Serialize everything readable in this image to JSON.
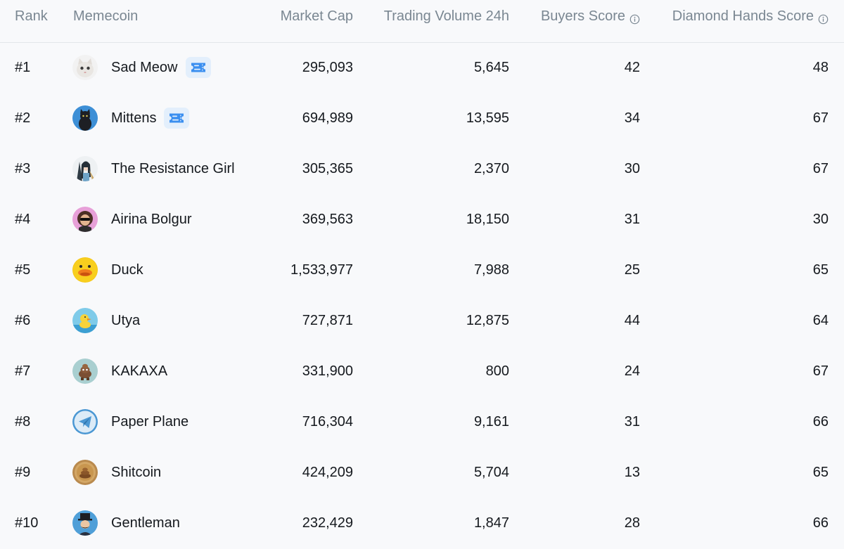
{
  "header": {
    "rank": "Rank",
    "memecoin": "Memecoin",
    "market_cap": "Market Cap",
    "trading_volume": "Trading Volume 24h",
    "buyers_score": "Buyers Score",
    "diamond_hands_score": "Diamond Hands Score",
    "info_icon": "info-circle-icon"
  },
  "badge_icon": "ticket-icon",
  "colors": {
    "header_text": "#7a8792",
    "body_text": "#15191e",
    "badge_bg": "#e3effc",
    "badge_icon": "#3b8ff0",
    "divider": "#e3e6ea",
    "background": "#f8f9fb"
  },
  "rows": [
    {
      "rank": "#1",
      "name": "Sad Meow",
      "avatar": "sad-cat-avatar",
      "badge": true,
      "market_cap": "295,093",
      "volume": "5,645",
      "buyers": "42",
      "diamond": "48"
    },
    {
      "rank": "#2",
      "name": "Mittens",
      "avatar": "black-cat-avatar",
      "badge": true,
      "market_cap": "694,989",
      "volume": "13,595",
      "buyers": "34",
      "diamond": "67"
    },
    {
      "rank": "#3",
      "name": "The Resistance Girl",
      "avatar": "resistance-girl-avatar",
      "badge": false,
      "market_cap": "305,365",
      "volume": "2,370",
      "buyers": "30",
      "diamond": "67"
    },
    {
      "rank": "#4",
      "name": "Airina Bolgur",
      "avatar": "airina-avatar",
      "badge": false,
      "market_cap": "369,563",
      "volume": "18,150",
      "buyers": "31",
      "diamond": "30"
    },
    {
      "rank": "#5",
      "name": "Duck",
      "avatar": "duck-avatar",
      "badge": false,
      "market_cap": "1,533,977",
      "volume": "7,988",
      "buyers": "25",
      "diamond": "65"
    },
    {
      "rank": "#6",
      "name": "Utya",
      "avatar": "utya-duck-avatar",
      "badge": false,
      "market_cap": "727,871",
      "volume": "12,875",
      "buyers": "44",
      "diamond": "64"
    },
    {
      "rank": "#7",
      "name": "KAKAXA",
      "avatar": "kakaxa-avatar",
      "badge": false,
      "market_cap": "331,900",
      "volume": "800",
      "buyers": "24",
      "diamond": "67"
    },
    {
      "rank": "#8",
      "name": "Paper Plane",
      "avatar": "paper-plane-avatar",
      "badge": false,
      "market_cap": "716,304",
      "volume": "9,161",
      "buyers": "31",
      "diamond": "66"
    },
    {
      "rank": "#9",
      "name": "Shitcoin",
      "avatar": "shitcoin-avatar",
      "badge": false,
      "market_cap": "424,209",
      "volume": "5,704",
      "buyers": "13",
      "diamond": "65"
    },
    {
      "rank": "#10",
      "name": "Gentleman",
      "avatar": "gentleman-avatar",
      "badge": false,
      "market_cap": "232,429",
      "volume": "1,847",
      "buyers": "28",
      "diamond": "66"
    }
  ]
}
